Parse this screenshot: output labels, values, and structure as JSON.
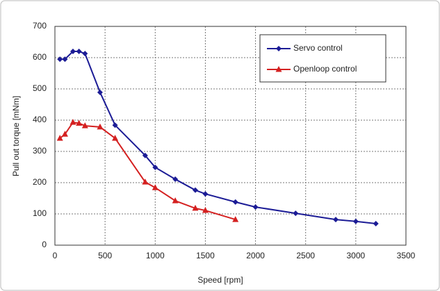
{
  "chart_data": {
    "type": "line",
    "x_label": "Speed [rpm]",
    "y_label": "Pull out torque [mNm]",
    "xlim": [
      0,
      3500
    ],
    "xticks": [
      0,
      500,
      1000,
      1500,
      2000,
      2500,
      3000,
      3500
    ],
    "ylim": [
      0,
      700
    ],
    "yticks": [
      0,
      100,
      200,
      300,
      400,
      500,
      600,
      700
    ],
    "grid": true,
    "legend": "upper right",
    "series": [
      {
        "name": "Servo control",
        "color": "#1c1c96",
        "marker": "diamond",
        "x": [
          50,
          100,
          180,
          240,
          300,
          450,
          600,
          900,
          1000,
          1200,
          1400,
          1500,
          1800,
          2000,
          2400,
          2800,
          3000,
          3200
        ],
        "values": [
          595,
          595,
          620,
          620,
          613,
          489,
          384,
          287,
          249,
          211,
          176,
          164,
          138,
          122,
          102,
          82,
          76,
          69
        ]
      },
      {
        "name": "Openloop control",
        "color": "#d42020",
        "marker": "triangle",
        "x": [
          50,
          100,
          180,
          240,
          300,
          450,
          600,
          900,
          1000,
          1200,
          1400,
          1500,
          1800
        ],
        "values": [
          342,
          355,
          393,
          390,
          382,
          378,
          342,
          202,
          184,
          142,
          118,
          111,
          82
        ]
      }
    ]
  }
}
